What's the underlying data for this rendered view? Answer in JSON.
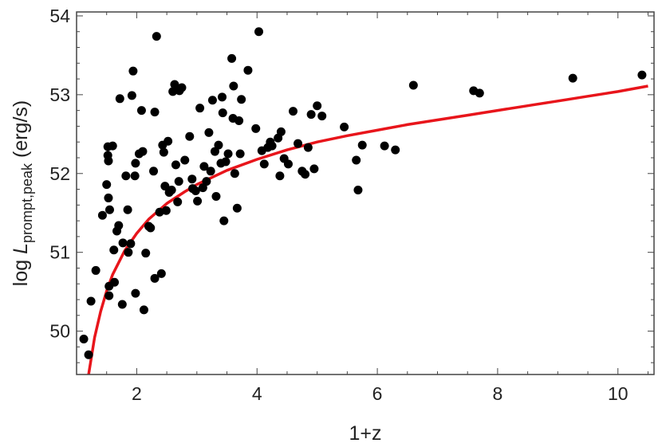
{
  "chart_data": {
    "type": "scatter",
    "xlabel": "1+z",
    "ylabel": {
      "prefix": "log ",
      "symbol": "L",
      "subscript": "prompt,peak",
      "suffix": " (erg/s)"
    },
    "xlim": [
      1.0,
      10.6
    ],
    "ylim": [
      49.45,
      54.05
    ],
    "xticks": [
      2,
      4,
      6,
      8,
      10
    ],
    "yticks": [
      50,
      51,
      52,
      53,
      54
    ],
    "grid": false,
    "series": [
      {
        "kind": "points",
        "color": "#000000",
        "points": [
          [
            1.12,
            49.9
          ],
          [
            1.2,
            49.7
          ],
          [
            1.24,
            50.38
          ],
          [
            1.32,
            50.77
          ],
          [
            1.43,
            51.47
          ],
          [
            1.5,
            51.86
          ],
          [
            1.52,
            52.34
          ],
          [
            1.53,
            52.16
          ],
          [
            1.52,
            52.23
          ],
          [
            1.53,
            51.69
          ],
          [
            1.55,
            51.54
          ],
          [
            1.54,
            50.57
          ],
          [
            1.54,
            50.45
          ],
          [
            1.6,
            52.35
          ],
          [
            1.62,
            51.03
          ],
          [
            1.63,
            50.62
          ],
          [
            1.67,
            51.27
          ],
          [
            1.7,
            51.34
          ],
          [
            1.72,
            52.95
          ],
          [
            1.76,
            50.34
          ],
          [
            1.77,
            51.12
          ],
          [
            1.82,
            51.97
          ],
          [
            1.85,
            51.54
          ],
          [
            1.86,
            51.0
          ],
          [
            1.9,
            51.11
          ],
          [
            1.92,
            52.99
          ],
          [
            1.94,
            53.3
          ],
          [
            1.97,
            51.97
          ],
          [
            1.98,
            52.13
          ],
          [
            1.98,
            50.48
          ],
          [
            2.04,
            52.25
          ],
          [
            2.08,
            52.8
          ],
          [
            2.1,
            52.28
          ],
          [
            2.12,
            50.27
          ],
          [
            2.15,
            50.99
          ],
          [
            2.2,
            51.33
          ],
          [
            2.23,
            51.31
          ],
          [
            2.28,
            52.03
          ],
          [
            2.3,
            52.78
          ],
          [
            2.3,
            50.67
          ],
          [
            2.33,
            53.74
          ],
          [
            2.38,
            51.51
          ],
          [
            2.41,
            50.73
          ],
          [
            2.43,
            52.36
          ],
          [
            2.45,
            52.27
          ],
          [
            2.47,
            51.84
          ],
          [
            2.49,
            51.53
          ],
          [
            2.52,
            52.41
          ],
          [
            2.54,
            51.76
          ],
          [
            2.58,
            51.79
          ],
          [
            2.6,
            53.04
          ],
          [
            2.63,
            53.13
          ],
          [
            2.65,
            52.11
          ],
          [
            2.68,
            51.64
          ],
          [
            2.7,
            51.9
          ],
          [
            2.71,
            53.05
          ],
          [
            2.75,
            53.09
          ],
          [
            2.8,
            52.17
          ],
          [
            2.88,
            52.47
          ],
          [
            2.92,
            51.93
          ],
          [
            2.93,
            51.81
          ],
          [
            2.98,
            51.78
          ],
          [
            3.01,
            51.65
          ],
          [
            3.05,
            52.83
          ],
          [
            3.1,
            51.82
          ],
          [
            3.12,
            52.09
          ],
          [
            3.16,
            51.9
          ],
          [
            3.2,
            52.52
          ],
          [
            3.23,
            52.03
          ],
          [
            3.26,
            52.93
          ],
          [
            3.3,
            52.28
          ],
          [
            3.32,
            51.71
          ],
          [
            3.36,
            52.36
          ],
          [
            3.4,
            52.13
          ],
          [
            3.42,
            52.97
          ],
          [
            3.43,
            52.77
          ],
          [
            3.45,
            51.4
          ],
          [
            3.48,
            52.15
          ],
          [
            3.52,
            52.25
          ],
          [
            3.58,
            53.46
          ],
          [
            3.6,
            52.7
          ],
          [
            3.61,
            53.11
          ],
          [
            3.63,
            52.0
          ],
          [
            3.67,
            51.56
          ],
          [
            3.7,
            52.67
          ],
          [
            3.72,
            52.25
          ],
          [
            3.74,
            52.94
          ],
          [
            3.85,
            53.31
          ],
          [
            3.98,
            52.57
          ],
          [
            4.03,
            53.8
          ],
          [
            4.08,
            52.29
          ],
          [
            4.12,
            52.12
          ],
          [
            4.18,
            52.33
          ],
          [
            4.22,
            52.4
          ],
          [
            4.25,
            52.35
          ],
          [
            4.35,
            52.45
          ],
          [
            4.38,
            51.97
          ],
          [
            4.4,
            52.53
          ],
          [
            4.45,
            52.19
          ],
          [
            4.52,
            52.12
          ],
          [
            4.6,
            52.79
          ],
          [
            4.68,
            52.38
          ],
          [
            4.75,
            52.03
          ],
          [
            4.8,
            51.99
          ],
          [
            4.85,
            52.33
          ],
          [
            4.9,
            52.75
          ],
          [
            4.95,
            52.06
          ],
          [
            5.0,
            52.86
          ],
          [
            5.08,
            52.73
          ],
          [
            5.45,
            52.59
          ],
          [
            5.65,
            52.17
          ],
          [
            5.68,
            51.79
          ],
          [
            5.75,
            52.36
          ],
          [
            6.12,
            52.35
          ],
          [
            6.3,
            52.3
          ],
          [
            6.6,
            53.12
          ],
          [
            7.6,
            53.05
          ],
          [
            7.7,
            53.02
          ],
          [
            9.25,
            53.21
          ],
          [
            10.4,
            53.25
          ]
        ]
      },
      {
        "kind": "curve",
        "color": "#e8151b",
        "points": [
          [
            1.2,
            49.45
          ],
          [
            1.3,
            49.92
          ],
          [
            1.4,
            50.25
          ],
          [
            1.5,
            50.51
          ],
          [
            1.6,
            50.72
          ],
          [
            1.8,
            51.02
          ],
          [
            2.0,
            51.24
          ],
          [
            2.2,
            51.42
          ],
          [
            2.5,
            51.62
          ],
          [
            2.8,
            51.77
          ],
          [
            3.0,
            51.86
          ],
          [
            3.5,
            52.04
          ],
          [
            4.0,
            52.18
          ],
          [
            4.5,
            52.3
          ],
          [
            5.0,
            52.4
          ],
          [
            5.5,
            52.48
          ],
          [
            6.0,
            52.55
          ],
          [
            6.5,
            52.62
          ],
          [
            7.0,
            52.68
          ],
          [
            7.5,
            52.74
          ],
          [
            8.0,
            52.8
          ],
          [
            8.5,
            52.86
          ],
          [
            9.0,
            52.92
          ],
          [
            9.5,
            52.98
          ],
          [
            10.0,
            53.04
          ],
          [
            10.5,
            53.11
          ]
        ]
      }
    ]
  }
}
